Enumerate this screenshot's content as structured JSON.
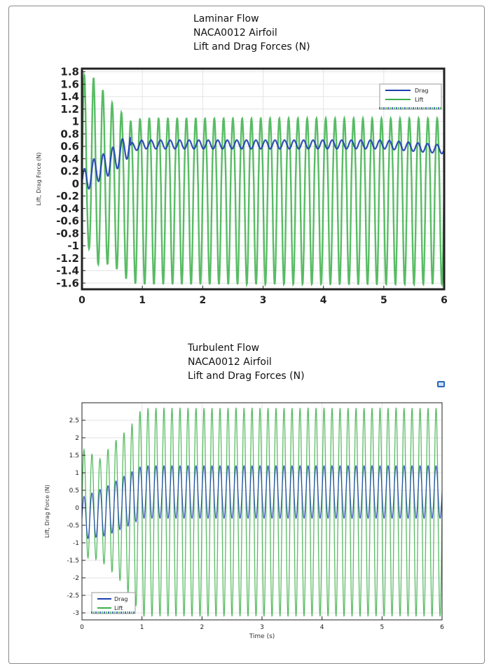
{
  "colors": {
    "drag": "#1f3fb0",
    "lift": "#3cb04a"
  },
  "icons": {
    "corner": "window-restore-icon"
  },
  "chart_data": [
    {
      "type": "line",
      "title_lines": [
        "Laminar Flow",
        "NACA0012 Airfoil",
        "Lift and Drag Forces (N)"
      ],
      "xlabel": "",
      "ylabel": "Lift, Drag Force (N)",
      "xlim": [
        0,
        6
      ],
      "ylim": [
        -1.7,
        1.85
      ],
      "x_ticks": [
        "0",
        "1",
        "2",
        "3",
        "4",
        "5",
        "6"
      ],
      "y_ticks": [
        "1.8",
        "1.6",
        "1.4",
        "1.2",
        "1",
        "0.8",
        "0.6",
        "0.4",
        "0.2",
        "0",
        "-0.2",
        "-0.4",
        "-0.6",
        "-0.8",
        "-1",
        "-1.2",
        "-1.4",
        "-1.6"
      ],
      "legend_position": "top-right",
      "grid": true,
      "series": [
        {
          "name": "Drag",
          "color": "#1f3fb0",
          "description": "settles to oscillate between ~0.6 and ~0.72 after t≈0.8 s",
          "x": [
            0,
            0.2,
            0.4,
            0.6,
            0.7,
            0.8,
            1,
            2,
            3,
            4,
            5,
            6
          ],
          "y": [
            0,
            0.2,
            0.3,
            0.45,
            0.55,
            0.65,
            0.7,
            0.7,
            0.7,
            0.7,
            0.7,
            0.62
          ]
        },
        {
          "name": "Lift",
          "color": "#3cb04a",
          "description": "periodic oscillation with amplitude ~1.6 and roughly 39 cycles over 6 s; transient up to ~1.75 near t≈0.1",
          "x": [
            0.1,
            0.2,
            0.5,
            0.8,
            1,
            2,
            3,
            4,
            5,
            6
          ],
          "y_max": [
            1.75,
            1.7,
            1.3,
            1.0,
            1.05,
            1.05,
            1.05,
            1.05,
            1.05,
            1.05
          ],
          "y_min": [
            -1.0,
            -1.3,
            -1.3,
            -1.6,
            -1.62,
            -1.62,
            -1.62,
            -1.62,
            -1.62,
            -1.62
          ]
        }
      ]
    },
    {
      "type": "line",
      "title_lines": [
        "Turbulent Flow",
        "NACA0012 Airfoil",
        "Lift and Drag Forces (N)"
      ],
      "xlabel": "Time (s)",
      "ylabel": "Lift, Drag Force (N)",
      "xlim": [
        0,
        6
      ],
      "ylim": [
        -3.2,
        3.0
      ],
      "x_ticks": [
        "0",
        "1",
        "2",
        "3",
        "4",
        "5",
        "6"
      ],
      "y_ticks": [
        "2.5",
        "2",
        "1.5",
        "1",
        "0.5",
        "0",
        "-0.5",
        "-1",
        "-1.5",
        "-2",
        "-2.5",
        "-3"
      ],
      "legend_position": "bottom-left",
      "grid": true,
      "series": [
        {
          "name": "Drag",
          "color": "#1f3fb0",
          "description": "oscillates roughly between -0.3 and 1.2 after t≈0.8 s",
          "x": [
            0,
            0.4,
            0.8,
            1,
            2,
            3,
            4,
            5,
            6
          ],
          "y_max": [
            0.3,
            0.6,
            1.0,
            1.2,
            1.2,
            1.2,
            1.2,
            1.2,
            1.2
          ],
          "y_min": [
            -0.9,
            -0.8,
            -0.5,
            -0.3,
            -0.3,
            -0.3,
            -0.3,
            -0.3,
            -0.3
          ]
        },
        {
          "name": "Lift",
          "color": "#3cb04a",
          "description": "periodic oscillation with amplitude ~2.9 and roughly 45 cycles over 6 s",
          "x": [
            0,
            0.3,
            0.6,
            0.8,
            1,
            2,
            3,
            4,
            5,
            6
          ],
          "y_max": [
            1.7,
            1.4,
            2.0,
            2.3,
            2.85,
            2.85,
            2.85,
            2.85,
            2.85,
            2.85
          ],
          "y_min": [
            -1.4,
            -1.5,
            -2.0,
            -2.5,
            -3.1,
            -3.1,
            -3.1,
            -3.1,
            -3.1,
            -3.1
          ]
        }
      ]
    }
  ]
}
